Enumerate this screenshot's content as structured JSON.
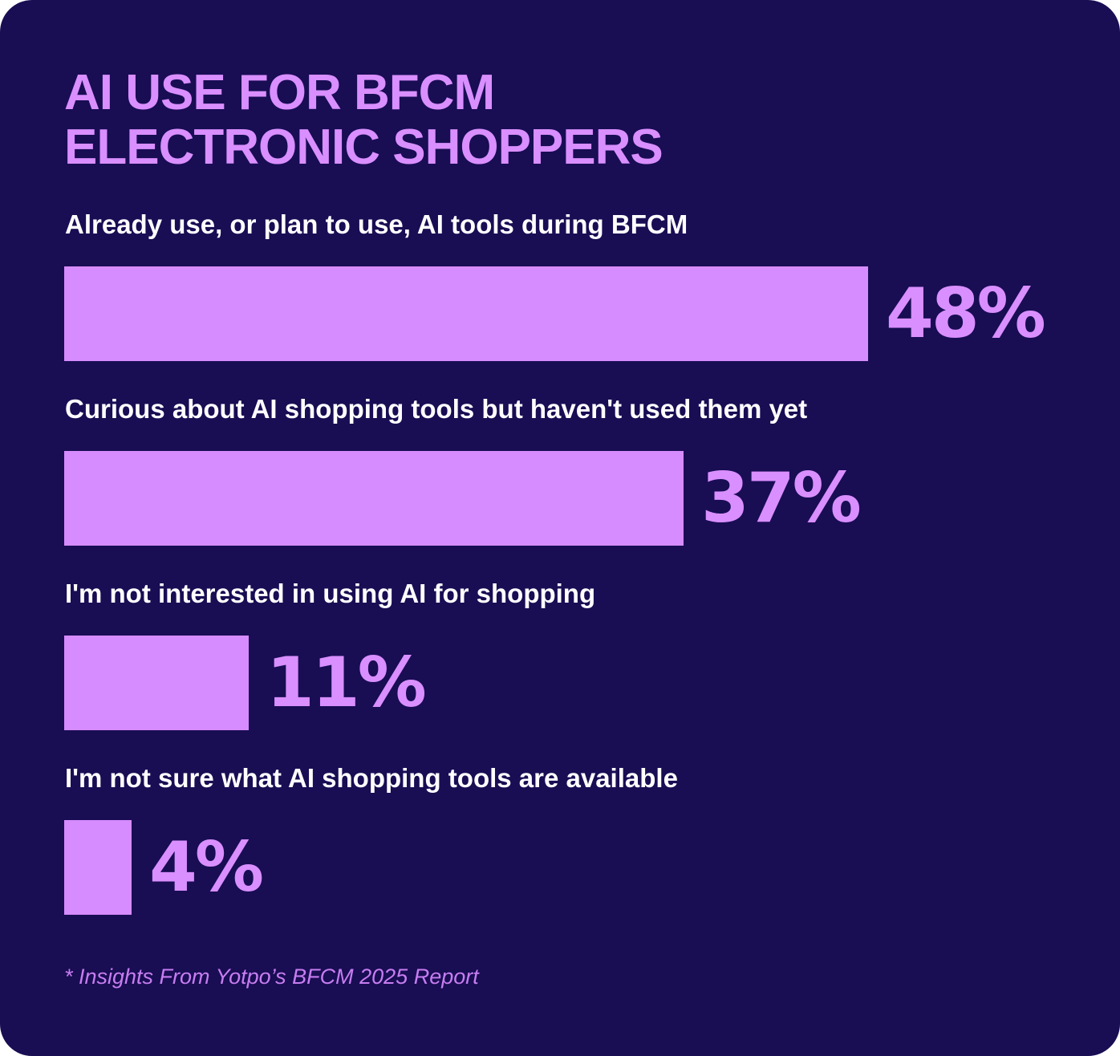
{
  "header": {
    "title_line1": "AI USE FOR BFCM",
    "title_line2": "ELECTRONIC SHOPPERS"
  },
  "footnote": "* Insights From Yotpo’s BFCM 2025 Report",
  "colors": {
    "background": "#190d54",
    "bar": "#d68cff",
    "accent_text": "#d98fff",
    "label_text": "#ffffff"
  },
  "chart_data": {
    "type": "bar",
    "orientation": "horizontal",
    "title": "AI USE FOR BFCM ELECTRONIC SHOPPERS",
    "categories": [
      "Already use, or plan to use, AI tools during BFCM",
      "Curious about AI shopping tools but haven't used them yet",
      "I'm not interested in using AI for shopping",
      "I'm not sure what AI shopping tools are available"
    ],
    "values": [
      48,
      37,
      11,
      4
    ],
    "value_labels": [
      "48%",
      "37%",
      "11%",
      "4%"
    ],
    "unit": "%",
    "xlim": [
      0,
      100
    ],
    "grid": false,
    "legend": "none"
  }
}
